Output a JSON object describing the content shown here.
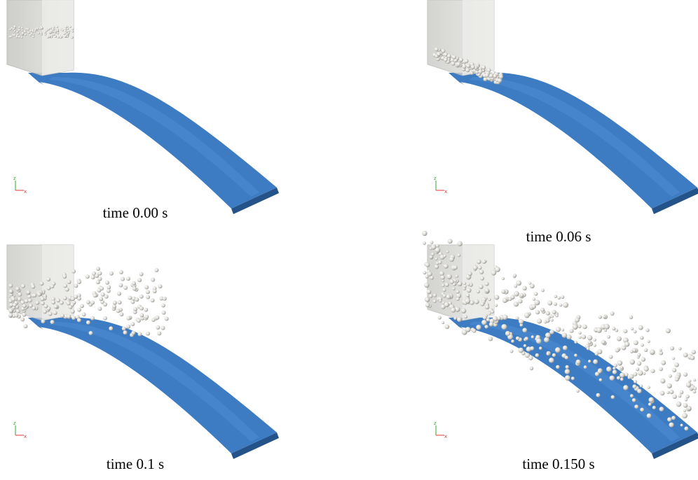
{
  "panels": [
    {
      "caption": "time 0.00 s"
    },
    {
      "caption": "time 0.06 s"
    },
    {
      "caption": "time 0.1 s"
    },
    {
      "caption": "time 0.150 s"
    }
  ],
  "triad": {
    "z": "z",
    "x": "x"
  }
}
